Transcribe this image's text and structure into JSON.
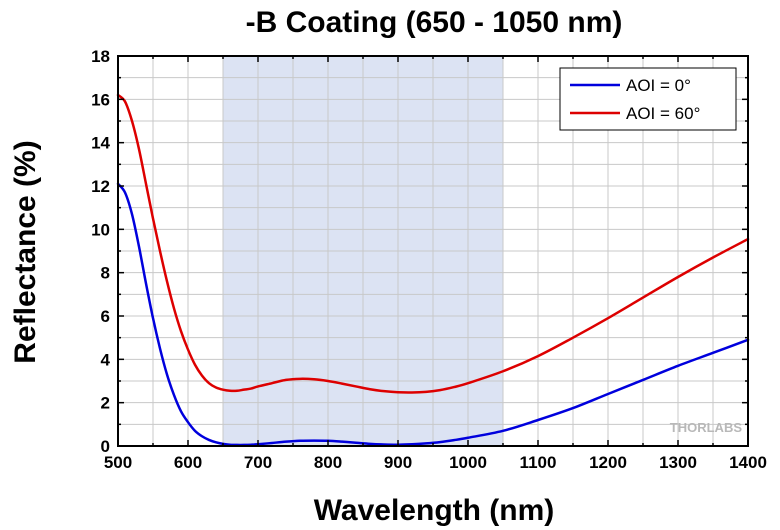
{
  "chart_data": {
    "type": "line",
    "title": "-B Coating (650 - 1050 nm)",
    "xlabel": "Wavelength (nm)",
    "ylabel": "Reflectance (%)",
    "xlim": [
      500,
      1400
    ],
    "ylim": [
      0,
      18
    ],
    "xticks": [
      500,
      600,
      700,
      800,
      900,
      1000,
      1100,
      1200,
      1300,
      1400
    ],
    "yticks": [
      0,
      2,
      4,
      6,
      8,
      10,
      12,
      14,
      16,
      18
    ],
    "grid": true,
    "legend_position": "top-right",
    "highlight_band": {
      "from": 650,
      "to": 1050,
      "color": "#dce3f3"
    },
    "series": [
      {
        "name": "AOI = 0°",
        "color": "#0000dd",
        "x": [
          500,
          510,
          520,
          530,
          540,
          550,
          560,
          570,
          580,
          590,
          600,
          610,
          620,
          630,
          640,
          650,
          660,
          670,
          680,
          690,
          700,
          720,
          740,
          760,
          780,
          800,
          820,
          840,
          860,
          880,
          900,
          920,
          940,
          960,
          980,
          1000,
          1050,
          1100,
          1150,
          1200,
          1250,
          1300,
          1350,
          1400
        ],
        "y": [
          12.1,
          11.7,
          10.7,
          9.2,
          7.5,
          5.9,
          4.5,
          3.3,
          2.35,
          1.6,
          1.1,
          0.7,
          0.45,
          0.28,
          0.17,
          0.1,
          0.06,
          0.05,
          0.05,
          0.06,
          0.08,
          0.14,
          0.2,
          0.24,
          0.25,
          0.24,
          0.2,
          0.15,
          0.1,
          0.07,
          0.06,
          0.08,
          0.12,
          0.18,
          0.27,
          0.38,
          0.7,
          1.2,
          1.75,
          2.4,
          3.05,
          3.7,
          4.3,
          4.9
        ]
      },
      {
        "name": "AOI = 60°",
        "color": "#dd0000",
        "x": [
          500,
          510,
          520,
          530,
          540,
          550,
          560,
          570,
          580,
          590,
          600,
          610,
          620,
          630,
          640,
          650,
          660,
          670,
          680,
          690,
          700,
          720,
          740,
          760,
          780,
          800,
          820,
          840,
          860,
          880,
          900,
          920,
          940,
          960,
          980,
          1000,
          1050,
          1100,
          1150,
          1200,
          1250,
          1300,
          1350,
          1400
        ],
        "y": [
          16.2,
          15.9,
          15.0,
          13.7,
          12.1,
          10.5,
          9.0,
          7.6,
          6.35,
          5.3,
          4.45,
          3.75,
          3.25,
          2.9,
          2.7,
          2.6,
          2.55,
          2.55,
          2.6,
          2.65,
          2.75,
          2.9,
          3.05,
          3.1,
          3.08,
          3.0,
          2.88,
          2.75,
          2.62,
          2.53,
          2.48,
          2.47,
          2.5,
          2.58,
          2.72,
          2.9,
          3.45,
          4.15,
          5.0,
          5.9,
          6.85,
          7.8,
          8.7,
          9.55
        ]
      }
    ]
  },
  "branding": {
    "watermark_text": "THORLABS"
  }
}
